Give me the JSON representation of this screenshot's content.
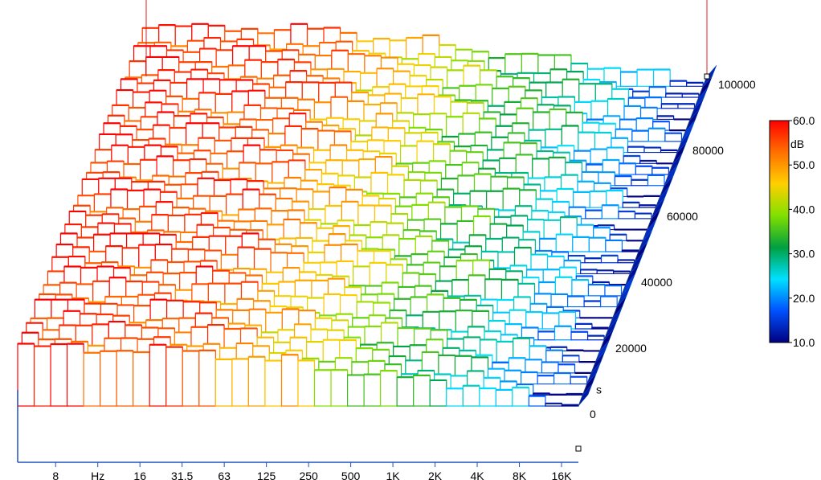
{
  "chart_data": {
    "type": "heatmap",
    "subtype": "3d-waterfall-spectrogram",
    "title": "",
    "x_axis": {
      "unit": "Hz",
      "ticks": [
        "8",
        "16",
        "31.5",
        "63",
        "125",
        "250",
        "500",
        "1K",
        "2K",
        "4K",
        "8K",
        "16K"
      ]
    },
    "time_axis": {
      "unit": "s",
      "ticks": [
        "0",
        "20000",
        "40000",
        "60000",
        "80000",
        "100000"
      ],
      "range": [
        0,
        100000
      ]
    },
    "colorbar": {
      "unit": "dB",
      "ticks": [
        "10.0",
        "20.0",
        "30.0",
        "40.0",
        "50.0",
        "60.0"
      ],
      "range": [
        10,
        60
      ],
      "colors": [
        "#000080",
        "#0050ff",
        "#00e0ff",
        "#00a040",
        "#80e000",
        "#ffd000",
        "#ff7000",
        "#ff0000"
      ]
    },
    "band_levels_db": [
      58,
      57,
      57,
      57,
      56,
      56,
      56,
      55,
      55,
      55,
      54,
      54,
      52,
      50,
      48,
      46,
      47,
      45,
      42,
      40,
      38,
      36,
      34,
      32,
      33,
      31,
      29,
      27,
      24,
      22,
      20,
      18,
      14,
      12
    ],
    "time_profile_db": [
      0,
      -2,
      1,
      -1,
      2,
      -3,
      0,
      1,
      -2,
      2,
      3,
      -1,
      0,
      -2,
      1,
      2,
      -3,
      0,
      1,
      -1,
      2,
      0,
      -2,
      1,
      3,
      -1,
      0,
      2,
      -2,
      1
    ],
    "frames_count": 30,
    "bands_count": 34,
    "grid": false,
    "legend_position": "right"
  }
}
